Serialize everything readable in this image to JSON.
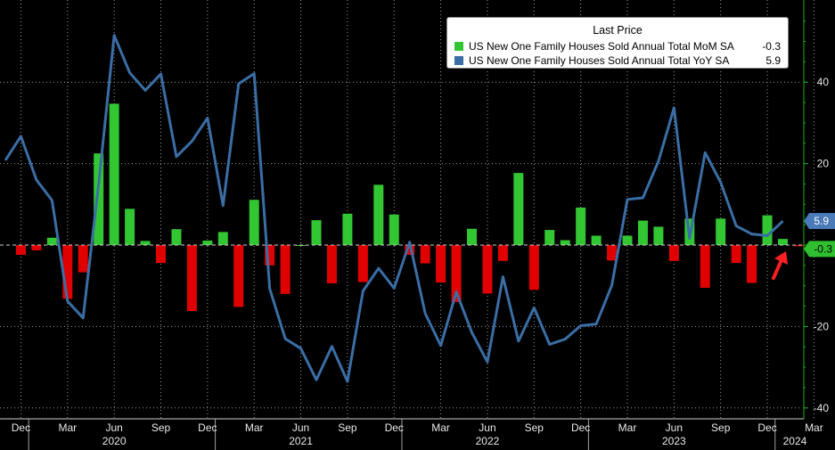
{
  "colors": {
    "background": "#000000",
    "grid": "#9a9a9a",
    "axis_green": "#1db11d",
    "mom_positive": "#33c633",
    "mom_negative": "#e00000",
    "yoy_line": "#3a6ea5",
    "yoy_badge": "#4a7ab8",
    "mom_badge": "#2fbf2f",
    "arrow": "#ff2020"
  },
  "legend": {
    "title": "Last Price",
    "entries": [
      {
        "name": "US New One Family Houses Sold Annual Total MoM SA",
        "value": "-0.3",
        "color": "#33c633"
      },
      {
        "name": "US New One Family Houses Sold Annual Total YoY SA",
        "value": "5.9",
        "color": "#3a6ea5"
      }
    ]
  },
  "badges": {
    "yoy": "5.9",
    "mom": "-0.3"
  },
  "footer_text": "",
  "chart_data": {
    "type": "bar+line",
    "title": "",
    "xlabel": "",
    "ylabel": "",
    "ylim": [
      -41,
      59
    ],
    "grid": true,
    "legend_position": "top-right",
    "y_ticks": [
      -40,
      -20,
      0,
      20,
      40
    ],
    "y_tick_labels": [
      "-40",
      "-20",
      "0",
      "20",
      "40"
    ],
    "x_month_labels": [
      "Dec",
      "Mar",
      "Jun",
      "Sep",
      "Dec",
      "Mar",
      "Jun",
      "Sep",
      "Dec",
      "Mar",
      "Jun",
      "Sep",
      "Dec",
      "Mar",
      "Jun",
      "Sep",
      "Dec",
      "Mar"
    ],
    "x_year_labels": [
      "2020",
      "2021",
      "2022",
      "2023",
      "2024"
    ],
    "months": [
      "2019-11",
      "2019-12",
      "2020-01",
      "2020-02",
      "2020-03",
      "2020-04",
      "2020-05",
      "2020-06",
      "2020-07",
      "2020-08",
      "2020-09",
      "2020-10",
      "2020-11",
      "2020-12",
      "2021-01",
      "2021-02",
      "2021-03",
      "2021-04",
      "2021-05",
      "2021-06",
      "2021-07",
      "2021-08",
      "2021-09",
      "2021-10",
      "2021-11",
      "2021-12",
      "2022-01",
      "2022-02",
      "2022-03",
      "2022-04",
      "2022-05",
      "2022-06",
      "2022-07",
      "2022-08",
      "2022-09",
      "2022-10",
      "2022-11",
      "2022-12",
      "2023-01",
      "2023-02",
      "2023-03",
      "2023-04",
      "2023-05",
      "2023-06",
      "2023-07",
      "2023-08",
      "2023-09",
      "2023-10",
      "2023-11",
      "2023-12",
      "2024-01",
      "2024-02"
    ],
    "series": [
      {
        "name": "US New One Family Houses Sold Annual Total MoM SA",
        "type": "bar",
        "values": [
          -2.4,
          -1.3,
          1.8,
          -13.2,
          -6.7,
          22.5,
          34.7,
          8.9,
          1.0,
          -4.4,
          3.9,
          -16.2,
          1.1,
          3.2,
          -15.2,
          11.1,
          -5.0,
          -12.0,
          0.0,
          6.1,
          -9.4,
          7.7,
          -9.1,
          14.8,
          7.5,
          -2.4,
          -4.5,
          -9.2,
          -14.0,
          4.0,
          -11.9,
          -3.9,
          17.7,
          -11.0,
          3.7,
          1.2,
          9.2,
          2.3,
          -3.8,
          2.3,
          6.0,
          4.5,
          -3.9,
          6.5,
          -10.5,
          6.5,
          -4.4,
          -9.3,
          7.3,
          1.5,
          -0.3
        ],
        "x_offset": 1
      },
      {
        "name": "US New One Family Houses Sold Annual Total YoY SA",
        "type": "line",
        "values": [
          20.8,
          26.7,
          16.0,
          11.0,
          -13.8,
          -17.9,
          15.0,
          51.5,
          42.3,
          38.0,
          42.0,
          21.7,
          25.5,
          31.2,
          9.7,
          39.6,
          42.1,
          -10.7,
          -23.0,
          -25.4,
          -33.1,
          -24.9,
          -33.5,
          -11.3,
          -5.7,
          -10.6,
          0.7,
          -16.8,
          -24.7,
          -11.5,
          -21.5,
          -28.7,
          -7.8,
          -23.6,
          -15.4,
          -24.4,
          -23.1,
          -19.8,
          -19.4,
          -9.9,
          11.2,
          11.6,
          20.6,
          33.7,
          1.6,
          22.7,
          15.4,
          4.7,
          2.7,
          2.3,
          5.9
        ]
      }
    ]
  }
}
